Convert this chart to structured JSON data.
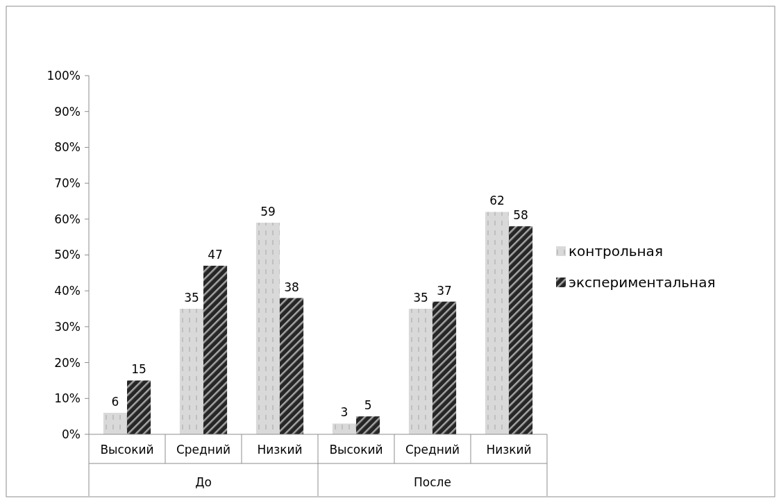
{
  "chart_data": {
    "type": "bar",
    "categories": [
      "Высокий",
      "Средний",
      "Низкий",
      "Высокий",
      "Средний",
      "Низкий"
    ],
    "series": [
      {
        "name": "контрольная",
        "color": "#d9d9d9",
        "values": [
          6,
          35,
          59,
          3,
          35,
          62
        ]
      },
      {
        "name": "экспериментальная",
        "color": "#262626",
        "values": [
          15,
          47,
          38,
          5,
          37,
          58
        ]
      }
    ],
    "ylim": [
      0,
      100
    ],
    "yticks": [
      {
        "value": 0,
        "label": "0%"
      },
      {
        "value": 10,
        "label": "10%"
      },
      {
        "value": 20,
        "label": "20%"
      },
      {
        "value": 30,
        "label": "30%"
      },
      {
        "value": 40,
        "label": "40%"
      },
      {
        "value": 50,
        "label": "50%"
      },
      {
        "value": 60,
        "label": "60%"
      },
      {
        "value": 70,
        "label": "70%"
      },
      {
        "value": 80,
        "label": "80%"
      },
      {
        "value": 90,
        "label": "90%"
      },
      {
        "value": 100,
        "label": "100%"
      }
    ],
    "annotations": [
      "До",
      "После"
    ],
    "data_labels": true,
    "legend": "right",
    "grid": false
  }
}
